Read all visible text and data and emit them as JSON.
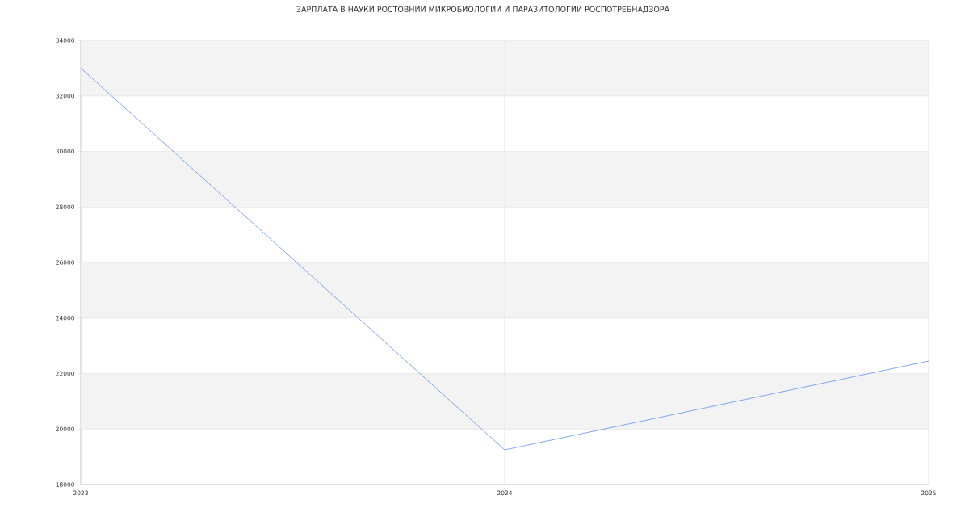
{
  "chart_data": {
    "type": "line",
    "title": "ЗАРПЛАТА В  НАУКИ РОСТОВНИИ МИКРОБИОЛОГИИ И ПАРАЗИТОЛОГИИ РОСПОТРЕБНАДЗОРА",
    "x": [
      2023,
      2024,
      2025
    ],
    "series": [
      {
        "color": "#6f9cf5",
        "values": [
          33000,
          19250,
          22450
        ]
      }
    ],
    "xlim": [
      2023,
      2025
    ],
    "xticks": [
      2023,
      2024,
      2025
    ],
    "ylim": [
      18000,
      34000
    ],
    "yticks": [
      18000,
      20000,
      22000,
      24000,
      26000,
      28000,
      30000,
      32000,
      34000
    ],
    "grid": true,
    "marker": "none",
    "line_style": "solid",
    "bands": [
      {
        "axis": "y",
        "from": 20000,
        "to": 22000,
        "color": "#f3f3f3"
      },
      {
        "axis": "y",
        "from": 24000,
        "to": 26000,
        "color": "#f3f3f3"
      },
      {
        "axis": "y",
        "from": 28000,
        "to": 30000,
        "color": "#f3f3f3"
      },
      {
        "axis": "y",
        "from": 32000,
        "to": 34000,
        "color": "#f3f3f3"
      }
    ]
  }
}
